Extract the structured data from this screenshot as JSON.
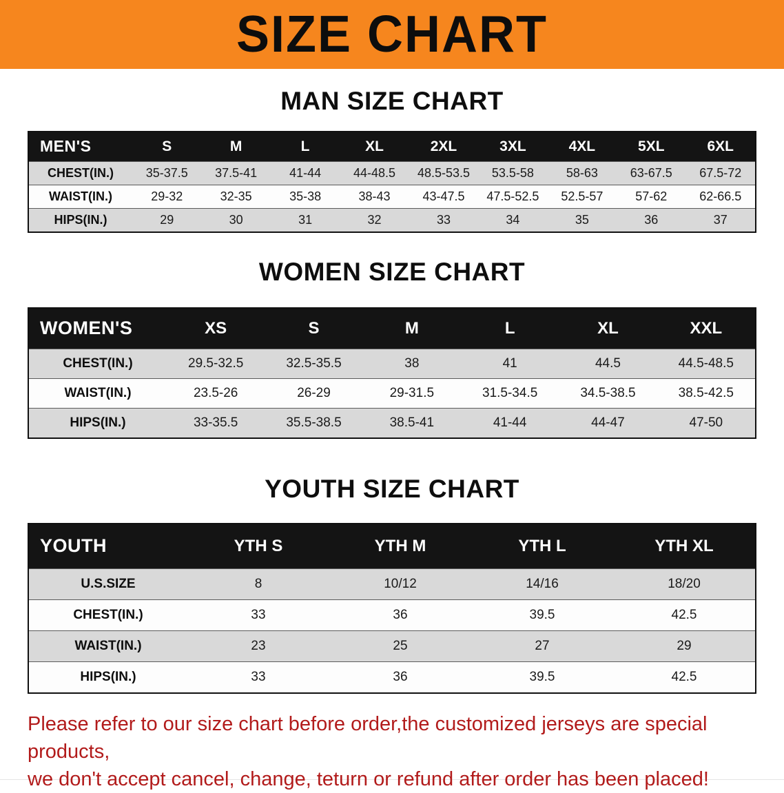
{
  "banner": {
    "title": "SIZE CHART"
  },
  "man": {
    "heading": "MAN SIZE CHART",
    "table": {
      "label": "MEN'S",
      "columns": [
        "S",
        "M",
        "L",
        "XL",
        "2XL",
        "3XL",
        "4XL",
        "5XL",
        "6XL"
      ],
      "rows": [
        {
          "label": "CHEST(IN.)",
          "values": [
            "35-37.5",
            "37.5-41",
            "41-44",
            "44-48.5",
            "48.5-53.5",
            "53.5-58",
            "58-63",
            "63-67.5",
            "67.5-72"
          ]
        },
        {
          "label": "WAIST(IN.)",
          "values": [
            "29-32",
            "32-35",
            "35-38",
            "38-43",
            "43-47.5",
            "47.5-52.5",
            "52.5-57",
            "57-62",
            "62-66.5"
          ]
        },
        {
          "label": "HIPS(IN.)",
          "values": [
            "29",
            "30",
            "31",
            "32",
            "33",
            "34",
            "35",
            "36",
            "37"
          ]
        }
      ]
    }
  },
  "women": {
    "heading": "WOMEN SIZE CHART",
    "table": {
      "label": "WOMEN'S",
      "columns": [
        "XS",
        "S",
        "M",
        "L",
        "XL",
        "XXL"
      ],
      "rows": [
        {
          "label": "CHEST(IN.)",
          "values": [
            "29.5-32.5",
            "32.5-35.5",
            "38",
            "41",
            "44.5",
            "44.5-48.5"
          ]
        },
        {
          "label": "WAIST(IN.)",
          "values": [
            "23.5-26",
            "26-29",
            "29-31.5",
            "31.5-34.5",
            "34.5-38.5",
            "38.5-42.5"
          ]
        },
        {
          "label": "HIPS(IN.)",
          "values": [
            "33-35.5",
            "35.5-38.5",
            "38.5-41",
            "41-44",
            "44-47",
            "47-50"
          ]
        }
      ]
    }
  },
  "youth": {
    "heading": "YOUTH SIZE CHART",
    "table": {
      "label": "YOUTH",
      "columns": [
        "YTH S",
        "YTH M",
        "YTH L",
        "YTH XL"
      ],
      "rows": [
        {
          "label": "U.S.SIZE",
          "values": [
            "8",
            "10/12",
            "14/16",
            "18/20"
          ]
        },
        {
          "label": "CHEST(IN.)",
          "values": [
            "33",
            "36",
            "39.5",
            "42.5"
          ]
        },
        {
          "label": "WAIST(IN.)",
          "values": [
            "23",
            "25",
            "27",
            "29"
          ]
        },
        {
          "label": "HIPS(IN.)",
          "values": [
            "33",
            "36",
            "39.5",
            "42.5"
          ]
        }
      ]
    }
  },
  "disclaimer": {
    "line1": "Please refer to our size chart before order,the customized jerseys are special products,",
    "line2": "we don't accept cancel, change, teturn or refund after order has been placed!"
  },
  "colors": {
    "banner_bg": "#F6861E",
    "table_header_bg": "#141414",
    "row_alt_gray": "#D9D9D9",
    "disclaimer_red": "#B21B1B"
  }
}
